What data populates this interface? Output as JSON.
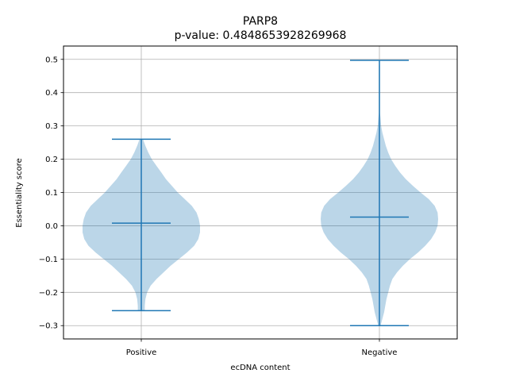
{
  "chart_data": {
    "type": "violin",
    "title": "PARP8",
    "subtitle": "p-value: 0.4848653928269968",
    "xlabel": "ecDNA content",
    "ylabel": "Essentiality score",
    "categories": [
      "Positive",
      "Negative"
    ],
    "ylim": [
      -0.34,
      0.54
    ],
    "yticks": [
      -0.3,
      -0.2,
      -0.1,
      0.0,
      0.1,
      0.2,
      0.3,
      0.4,
      0.5
    ],
    "ytick_labels": [
      "−0.3",
      "−0.2",
      "−0.1",
      "0.0",
      "0.1",
      "0.2",
      "0.3",
      "0.4",
      "0.5"
    ],
    "grid": true,
    "colors": {
      "body": "#1f77b4",
      "grid": "#b0b0b0"
    },
    "series": [
      {
        "category": "Positive",
        "min": -0.255,
        "median": 0.008,
        "max": 0.26,
        "density": [
          [
            -0.255,
            0.06
          ],
          [
            -0.24,
            0.06
          ],
          [
            -0.22,
            0.07
          ],
          [
            -0.2,
            0.1
          ],
          [
            -0.18,
            0.16
          ],
          [
            -0.16,
            0.26
          ],
          [
            -0.14,
            0.38
          ],
          [
            -0.12,
            0.5
          ],
          [
            -0.1,
            0.64
          ],
          [
            -0.08,
            0.78
          ],
          [
            -0.06,
            0.9
          ],
          [
            -0.04,
            0.97
          ],
          [
            -0.02,
            1.0
          ],
          [
            0.0,
            1.0
          ],
          [
            0.02,
            0.98
          ],
          [
            0.04,
            0.94
          ],
          [
            0.06,
            0.86
          ],
          [
            0.08,
            0.74
          ],
          [
            0.1,
            0.62
          ],
          [
            0.12,
            0.52
          ],
          [
            0.14,
            0.42
          ],
          [
            0.16,
            0.34
          ],
          [
            0.18,
            0.26
          ],
          [
            0.2,
            0.18
          ],
          [
            0.22,
            0.12
          ],
          [
            0.24,
            0.07
          ],
          [
            0.26,
            0.03
          ]
        ]
      },
      {
        "category": "Negative",
        "min": -0.3,
        "median": 0.026,
        "max": 0.497,
        "density": [
          [
            -0.3,
            0.02
          ],
          [
            -0.28,
            0.05
          ],
          [
            -0.26,
            0.08
          ],
          [
            -0.24,
            0.1
          ],
          [
            -0.22,
            0.12
          ],
          [
            -0.2,
            0.15
          ],
          [
            -0.18,
            0.18
          ],
          [
            -0.16,
            0.22
          ],
          [
            -0.14,
            0.3
          ],
          [
            -0.12,
            0.4
          ],
          [
            -0.1,
            0.52
          ],
          [
            -0.08,
            0.66
          ],
          [
            -0.06,
            0.78
          ],
          [
            -0.04,
            0.88
          ],
          [
            -0.02,
            0.95
          ],
          [
            0.0,
            0.99
          ],
          [
            0.02,
            1.0
          ],
          [
            0.04,
            0.99
          ],
          [
            0.06,
            0.94
          ],
          [
            0.08,
            0.84
          ],
          [
            0.1,
            0.7
          ],
          [
            0.12,
            0.57
          ],
          [
            0.14,
            0.45
          ],
          [
            0.16,
            0.35
          ],
          [
            0.18,
            0.27
          ],
          [
            0.2,
            0.2
          ],
          [
            0.22,
            0.15
          ],
          [
            0.24,
            0.11
          ],
          [
            0.26,
            0.08
          ],
          [
            0.28,
            0.05
          ],
          [
            0.3,
            0.03
          ],
          [
            0.32,
            0.02
          ],
          [
            0.34,
            0.01
          ],
          [
            0.36,
            0.01
          ],
          [
            0.4,
            0.01
          ],
          [
            0.44,
            0.01
          ],
          [
            0.48,
            0.01
          ],
          [
            0.497,
            0.0
          ]
        ]
      }
    ]
  }
}
